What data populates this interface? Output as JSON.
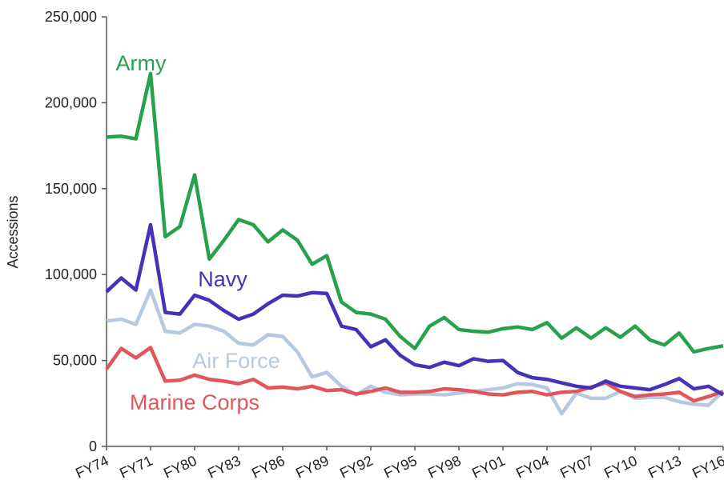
{
  "chart_data": {
    "type": "line",
    "y_label": "Accessions",
    "categories": [
      "FY74",
      null,
      null,
      "FY71",
      null,
      null,
      "FY80",
      null,
      null,
      "FY83",
      null,
      null,
      "FY86",
      null,
      null,
      "FY89",
      null,
      null,
      "FY92",
      null,
      null,
      "FY95",
      null,
      null,
      "FY98",
      null,
      null,
      "FY01",
      null,
      null,
      "FY04",
      null,
      null,
      "FY07",
      null,
      null,
      "FY10",
      null,
      null,
      "FY13",
      null,
      null,
      "FY16"
    ],
    "ylim": [
      0,
      250000
    ],
    "yticks": [
      0,
      {
        "value": 50000,
        "label": "50,000"
      },
      {
        "value": 100000,
        "label": "100,000"
      },
      {
        "value": 150000,
        "label": "150,000"
      },
      {
        "value": 200000,
        "label": "200,000"
      },
      {
        "value": 250000,
        "label": "250,000"
      }
    ],
    "series": [
      {
        "name": "Army",
        "color": "#27a24a",
        "values": [
          180000,
          180500,
          179000,
          217000,
          122000,
          128000,
          158000,
          109000,
          120000,
          132000,
          129000,
          119000,
          126000,
          120000,
          106000,
          111000,
          84000,
          78000,
          77000,
          74000,
          64000,
          57000,
          70000,
          75000,
          68000,
          67000,
          66500,
          68500,
          69500,
          68000,
          72000,
          63000,
          69000,
          63000,
          69000,
          63500,
          70000,
          62000,
          59000,
          66000,
          55000,
          57000,
          58500
        ]
      },
      {
        "name": "Navy",
        "color": "#4433b8",
        "values": [
          90000,
          98000,
          91000,
          129000,
          78000,
          77000,
          88000,
          85000,
          79000,
          74000,
          77000,
          83000,
          88000,
          87500,
          89500,
          89000,
          70000,
          68000,
          58000,
          62000,
          53000,
          47500,
          46000,
          49000,
          47000,
          51000,
          49500,
          50000,
          43000,
          40000,
          39000,
          37000,
          35000,
          34000,
          38000,
          35000,
          34000,
          33000,
          36000,
          39500,
          33500,
          35000,
          30000
        ]
      },
      {
        "name": "Air Force",
        "color": "#b7c9e2",
        "values": [
          73000,
          74000,
          71000,
          91000,
          67000,
          66000,
          71000,
          70000,
          67000,
          60000,
          59000,
          65000,
          64000,
          55000,
          40500,
          43000,
          35000,
          30000,
          35000,
          31500,
          30000,
          30500,
          30500,
          30000,
          31000,
          32000,
          33000,
          34000,
          36500,
          36000,
          34000,
          19000,
          31000,
          28000,
          28000,
          32000,
          28000,
          28500,
          28500,
          26000,
          24500,
          24000,
          32000
        ]
      },
      {
        "name": "Marine Corps",
        "color": "#e0575b",
        "values": [
          45000,
          57000,
          51500,
          57500,
          38000,
          38500,
          41500,
          39000,
          38000,
          36500,
          39000,
          34000,
          34500,
          33500,
          35000,
          32500,
          33000,
          30500,
          32000,
          34000,
          31500,
          31500,
          32000,
          33500,
          33000,
          32000,
          30500,
          30000,
          31500,
          32000,
          30000,
          31500,
          32000,
          34500,
          37000,
          32000,
          29000,
          30000,
          30500,
          31500,
          26500,
          29000,
          32000
        ]
      }
    ]
  }
}
